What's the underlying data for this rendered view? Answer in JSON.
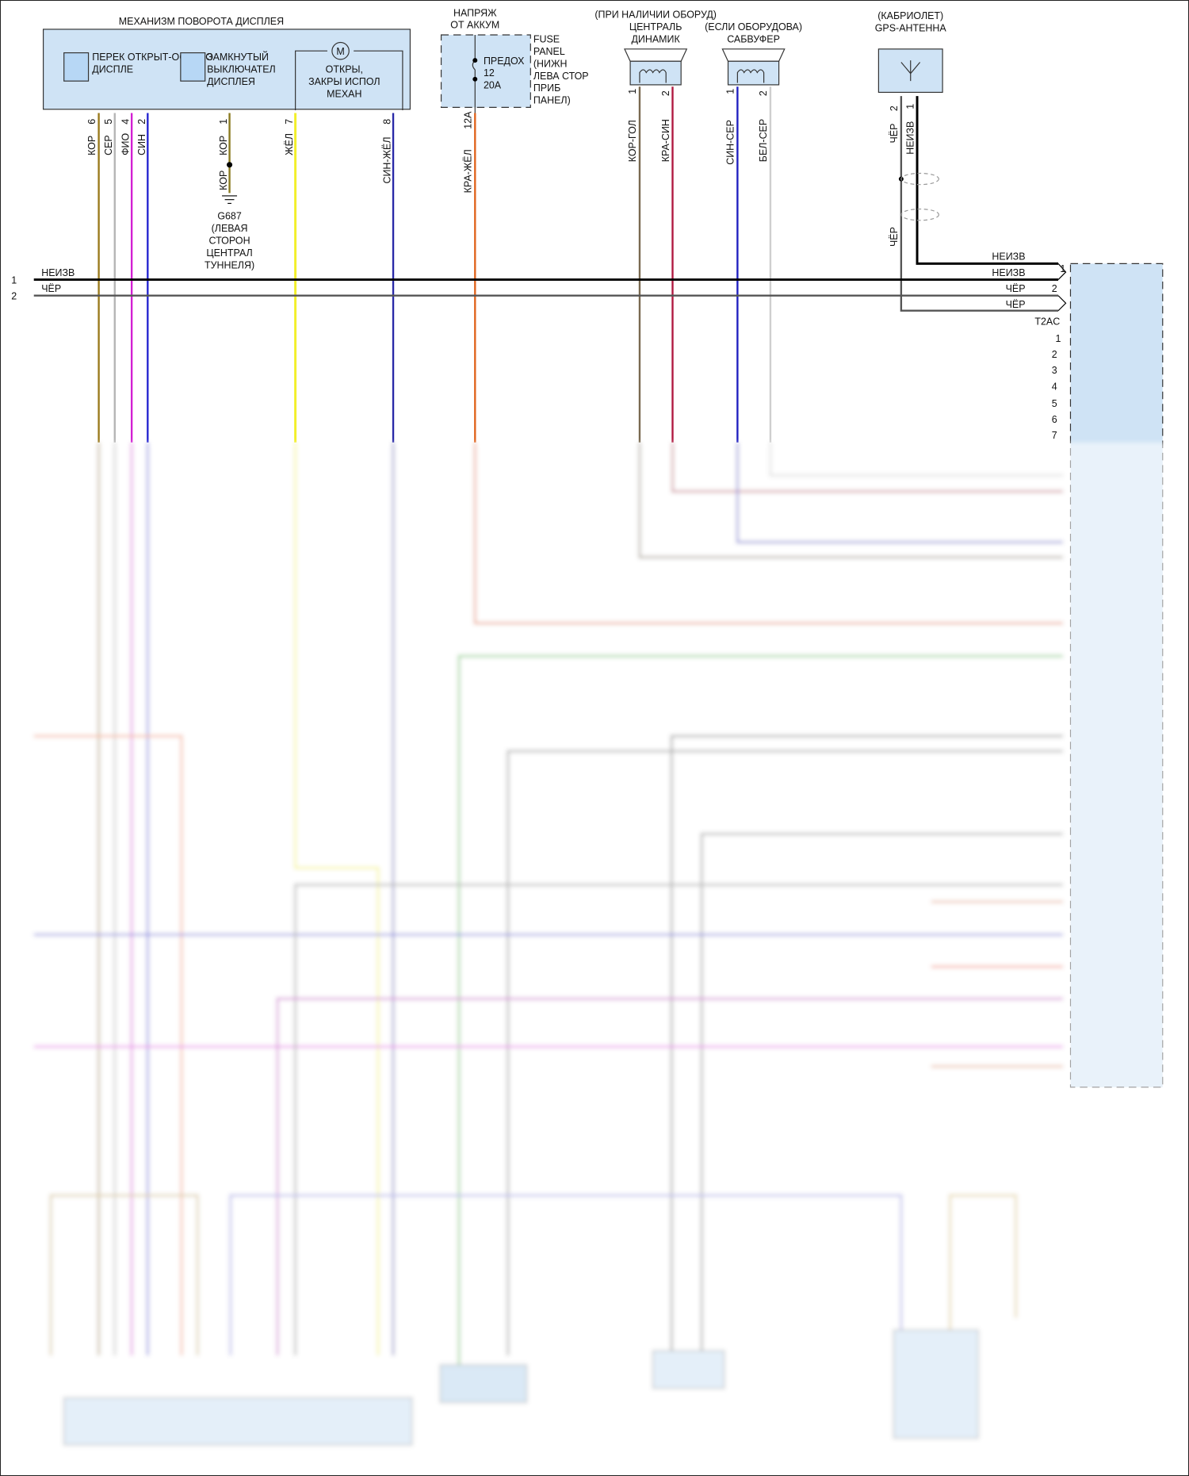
{
  "display_mechanism": {
    "title": "МЕХАНИЗМ ПОВОРОТА ДИСПЛЕЯ",
    "switch1": [
      "ПЕРЕК ОТКРЫТ-ОСТАНО",
      "ДИСПЛЕ"
    ],
    "switch2": [
      "ЗАМКНУТЫЙ",
      "ВЫКЛЮЧАТЕЛ",
      "ДИСПЛЕЯ"
    ],
    "motor_symbol": "M",
    "motor_label": [
      "ОТКРЫ,",
      "ЗАКРЫ ИСПОЛ",
      "МЕХАН"
    ],
    "pins": [
      {
        "pin": "6",
        "wire": "КОР",
        "color": "#9a7a1c"
      },
      {
        "pin": "5",
        "wire": "СЕР",
        "color": "#b5b5b5"
      },
      {
        "pin": "4",
        "wire": "ФИО",
        "color": "#d21fd2"
      },
      {
        "pin": "2",
        "wire": "СИН",
        "color": "#2525d0"
      },
      {
        "pin": "1",
        "wire": "КОР",
        "color": "#8a7a20"
      },
      {
        "pin": "7",
        "wire": "ЖЁЛ",
        "color": "#f2ef2a"
      },
      {
        "pin": "8",
        "wire": "СИН-ЖЁЛ",
        "color": "#2a2aa8"
      }
    ]
  },
  "ground": {
    "wire": "КОР",
    "label": [
      "G687",
      "(ЛЕВАЯ",
      "СТОРОН",
      "ЦЕНТРАЛ",
      "ТУННЕЛЯ)"
    ]
  },
  "battery": {
    "title": [
      "НАПРЯЖ",
      "ОТ АККУМ"
    ],
    "fuse": [
      "ПРЕДОХ",
      "12",
      "20A"
    ],
    "panel": [
      "FUSE",
      "PANEL",
      "(НИЖН",
      "ЛЕВА СТОР",
      "ПРИБ",
      "ПАНЕЛ)"
    ],
    "pin": "12A",
    "wire": "КРА-ЖЁЛ",
    "color": "#e0641e"
  },
  "center_speaker": {
    "title": [
      "(ПРИ НАЛИЧИИ ОБОРУД)",
      "ЦЕНТРАЛЬ",
      "ДИНАМИК"
    ],
    "pins": [
      {
        "pin": "1",
        "wire": "КОР-ГОЛ",
        "color": "#7a6a50"
      },
      {
        "pin": "2",
        "wire": "КРА-СИН",
        "color": "#b01840"
      }
    ]
  },
  "subwoofer": {
    "title": [
      "(ЕСЛИ ОБОРУДОВА)",
      "САБВУФЕР"
    ],
    "pins": [
      {
        "pin": "1",
        "wire": "СИН-СЕР",
        "color": "#2020c0"
      },
      {
        "pin": "2",
        "wire": "БЕЛ-СЕР",
        "color": "#cfcfcf"
      }
    ]
  },
  "gps": {
    "title": [
      "(КАБРИОЛЕТ)",
      "GPS-АНТЕННА"
    ],
    "pins": [
      {
        "pin": "2",
        "wire": "ЧЁР"
      },
      {
        "pin": "1",
        "wire": "НЕИЗВ"
      }
    ],
    "shield_wire": "ЧЁР"
  },
  "bus_lines": [
    {
      "num": "1",
      "wire": "НЕИЗВ",
      "color": "#000000"
    },
    {
      "num": "2",
      "wire": "ЧЁР",
      "color": "#555555"
    }
  ],
  "right_connector": {
    "wires": [
      "НЕИЗВ",
      "НЕИЗВ",
      "ЧЁР",
      "ЧЁР"
    ],
    "pins_top": [
      "1",
      "2"
    ],
    "name": "T2AC",
    "pins": [
      "1",
      "2",
      "3",
      "4",
      "5",
      "6",
      "7"
    ]
  }
}
